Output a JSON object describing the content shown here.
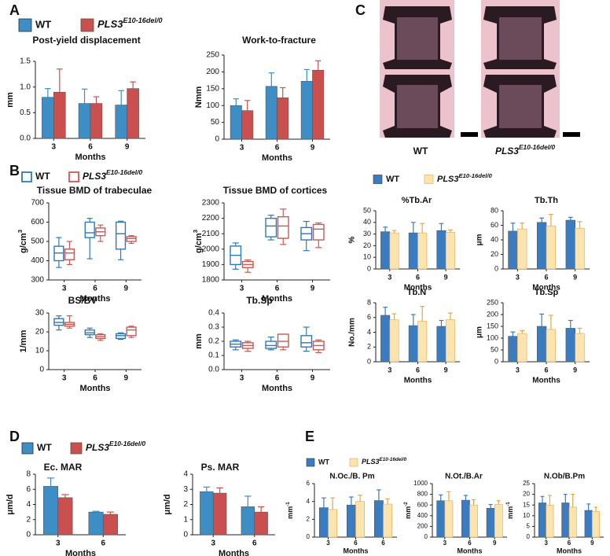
{
  "panel_labels": [
    "A",
    "B",
    "C",
    "D",
    "E"
  ],
  "image_labels": [
    "WT",
    {
      "base": "PLS3",
      "sup": "E10-16del/0"
    }
  ],
  "legends": [
    {
      "style": "filled",
      "entries": [
        {
          "name": "WT",
          "color": "#3d8ec4"
        },
        {
          "name": {
            "base": "PLS3",
            "sup": "E10-16del/0"
          },
          "color": "#c9504f"
        }
      ]
    },
    {
      "style": "outline",
      "entries": [
        {
          "name": "WT",
          "color": "#2e7ab8"
        },
        {
          "name": {
            "base": "PLS3",
            "sup": "E10-16del/0"
          },
          "color": "#c85a52"
        }
      ]
    },
    {
      "style": "filled",
      "entries": [
        {
          "name": "WT",
          "color": "#3b7cc0"
        },
        {
          "name": {
            "base": "PLS3",
            "sup": "E10-16del/0"
          },
          "color": "#fce4b0"
        }
      ]
    },
    {
      "style": "filled",
      "entries": [
        {
          "name": "WT",
          "color": "#3d8ec4"
        },
        {
          "name": {
            "base": "PLS3",
            "sup": "E10-16del/0"
          },
          "color": "#c9504f"
        }
      ]
    },
    {
      "style": "filled",
      "entries": [
        {
          "name": "WT",
          "color": "#3b7cc0"
        },
        {
          "name": {
            "base": "PLS3",
            "sup": "E10-16del/0"
          },
          "color": "#fce4b0"
        }
      ]
    }
  ],
  "chart_data": [
    {
      "type": "bar",
      "title": "Post-yield displacement",
      "ylabel": "mm",
      "xlabel": "Months",
      "categories": [
        3,
        6,
        9
      ],
      "series": [
        {
          "color": "#3d8ec4",
          "values": [
            0.8,
            0.68,
            0.65
          ],
          "errors": [
            0.17,
            0.28,
            0.28
          ]
        },
        {
          "color": "#c9504f",
          "values": [
            0.9,
            0.68,
            0.97
          ],
          "errors": [
            0.45,
            0.13,
            0.13
          ]
        }
      ],
      "ylim": [
        0,
        1.5
      ],
      "yticks": [
        {
          "value": 0,
          "label": "0.0"
        },
        {
          "value": 0.5,
          "label": "0.5"
        },
        {
          "value": 1,
          "label": "1.0"
        },
        1.5
      ]
    },
    {
      "type": "bar",
      "title": "Work-to-fracture",
      "ylabel": "Nmm",
      "xlabel": "Months",
      "categories": [
        3,
        6,
        9
      ],
      "series": [
        {
          "color": "#3d8ec4",
          "values": [
            100,
            157,
            172
          ],
          "errors": [
            20,
            40,
            35
          ]
        },
        {
          "color": "#c9504f",
          "values": [
            85,
            123,
            205
          ],
          "errors": [
            30,
            30,
            28
          ]
        }
      ],
      "ylim": [
        0,
        250
      ],
      "yticks": [
        0,
        50,
        100,
        150,
        200,
        250
      ]
    },
    {
      "type": "box",
      "title": "Tissue BMD of trabeculae",
      "ylabel": {
        "base": "g/cm",
        "sup": "3"
      },
      "xlabel": "Months",
      "categories": [
        3,
        6,
        9
      ],
      "series": [
        {
          "color": "#2e7ab8",
          "boxes": [
            {
              "min": 365,
              "q1": 400,
              "median": 440,
              "q3": 475,
              "max": 520
            },
            {
              "min": 410,
              "q1": 520,
              "median": 545,
              "q3": 600,
              "max": 620
            },
            {
              "min": 405,
              "q1": 460,
              "median": 540,
              "q3": 600,
              "max": 605
            }
          ]
        },
        {
          "color": "#c85a52",
          "boxes": [
            {
              "min": 380,
              "q1": 405,
              "median": 440,
              "q3": 460,
              "max": 500
            },
            {
              "min": 500,
              "q1": 530,
              "median": 550,
              "q3": 570,
              "max": 585
            },
            {
              "min": 490,
              "q1": 500,
              "median": 515,
              "q3": 525,
              "max": 530
            }
          ]
        }
      ],
      "ylim": [
        300,
        700
      ],
      "yticks": [
        300,
        400,
        500,
        600,
        700
      ]
    },
    {
      "type": "box",
      "title": "Tissue BMD of cortices",
      "ylabel": {
        "base": "g/cm",
        "sup": "3"
      },
      "xlabel": "Months",
      "categories": [
        3,
        6,
        9
      ],
      "series": [
        {
          "color": "#2e7ab8",
          "boxes": [
            {
              "min": 1870,
              "q1": 1900,
              "median": 1960,
              "q3": 2020,
              "max": 2040
            },
            {
              "min": 2060,
              "q1": 2080,
              "median": 2150,
              "q3": 2200,
              "max": 2220
            },
            {
              "min": 1990,
              "q1": 2060,
              "median": 2100,
              "q3": 2140,
              "max": 2180
            }
          ]
        },
        {
          "color": "#c85a52",
          "boxes": [
            {
              "min": 1850,
              "q1": 1880,
              "median": 1900,
              "q3": 1920,
              "max": 1930
            },
            {
              "min": 2030,
              "q1": 2070,
              "median": 2150,
              "q3": 2210,
              "max": 2260
            },
            {
              "min": 2010,
              "q1": 2060,
              "median": 2130,
              "q3": 2160,
              "max": 2170
            }
          ]
        }
      ],
      "ylim": [
        1800,
        2300
      ],
      "yticks": [
        1800,
        1900,
        2000,
        2100,
        2200,
        2300
      ]
    },
    {
      "type": "box",
      "title": "BS/BV",
      "ylabel": "1/mm",
      "xlabel": "Months",
      "categories": [
        3,
        6,
        9
      ],
      "series": [
        {
          "color": "#2e7ab8",
          "boxes": [
            {
              "min": 21,
              "q1": 23.5,
              "median": 25,
              "q3": 27,
              "max": 28.5
            },
            {
              "min": 17,
              "q1": 18.5,
              "median": 19.5,
              "q3": 21,
              "max": 22
            },
            {
              "min": 16,
              "q1": 16.5,
              "median": 18,
              "q3": 19,
              "max": 19.5
            }
          ]
        },
        {
          "color": "#c85a52",
          "boxes": [
            {
              "min": 22,
              "q1": 23,
              "median": 24,
              "q3": 25,
              "max": 28.5
            },
            {
              "min": 15.5,
              "q1": 16.5,
              "median": 17.5,
              "q3": 18.5,
              "max": 19
            },
            {
              "min": 17,
              "q1": 18,
              "median": 21,
              "q3": 22.5,
              "max": 23
            }
          ]
        }
      ],
      "ylim": [
        0,
        30
      ],
      "yticks": [
        0,
        10,
        20,
        30
      ]
    },
    {
      "type": "box",
      "title": "Tb.Sp",
      "ylabel": "mm",
      "xlabel": "Months",
      "categories": [
        3,
        6,
        9
      ],
      "series": [
        {
          "color": "#2e7ab8",
          "boxes": [
            {
              "min": 0.14,
              "q1": 0.16,
              "median": 0.18,
              "q3": 0.2,
              "max": 0.21
            },
            {
              "min": 0.14,
              "q1": 0.15,
              "median": 0.17,
              "q3": 0.2,
              "max": 0.23
            },
            {
              "min": 0.13,
              "q1": 0.16,
              "median": 0.19,
              "q3": 0.24,
              "max": 0.3
            }
          ]
        },
        {
          "color": "#c85a52",
          "boxes": [
            {
              "min": 0.13,
              "q1": 0.15,
              "median": 0.17,
              "q3": 0.19,
              "max": 0.2
            },
            {
              "min": 0.14,
              "q1": 0.16,
              "median": 0.2,
              "q3": 0.25,
              "max": 0.25
            },
            {
              "min": 0.12,
              "q1": 0.14,
              "median": 0.17,
              "q3": 0.2,
              "max": 0.21
            }
          ]
        }
      ],
      "ylim": [
        0,
        0.4
      ],
      "yticks": [
        {
          "value": 0,
          "label": "0.0"
        },
        0.1,
        0.2,
        0.3,
        0.4
      ]
    },
    {
      "type": "bar",
      "title": "%Tb.Ar",
      "ylabel": "%",
      "xlabel": "Months",
      "categories": [
        3,
        6,
        9
      ],
      "series": [
        {
          "color": "#3b7cc0",
          "values": [
            32,
            31,
            33
          ],
          "errors": [
            4,
            9,
            6
          ]
        },
        {
          "color": "#fce4b0",
          "edgecolor": "#e0a84e",
          "values": [
            31,
            31,
            31.5
          ],
          "errors": [
            2,
            8,
            2
          ]
        }
      ],
      "ylim": [
        0,
        50
      ],
      "yticks": [
        0,
        10,
        20,
        30,
        40,
        50
      ]
    },
    {
      "type": "bar",
      "title": "Tb.Th",
      "ylabel": "μm",
      "xlabel": "Months",
      "categories": [
        3,
        6,
        9
      ],
      "series": [
        {
          "color": "#3b7cc0",
          "values": [
            52,
            64,
            67
          ],
          "errors": [
            11,
            6,
            4
          ]
        },
        {
          "color": "#fce4b0",
          "edgecolor": "#e0a84e",
          "values": [
            55,
            59,
            56
          ],
          "errors": [
            8,
            16,
            9
          ]
        }
      ],
      "ylim": [
        0,
        80
      ],
      "yticks": [
        0,
        20,
        40,
        60,
        80
      ]
    },
    {
      "type": "bar",
      "title": "Tb.N",
      "ylabel": "No./mm",
      "xlabel": "Months",
      "categories": [
        3,
        6,
        9
      ],
      "series": [
        {
          "color": "#3b7cc0",
          "values": [
            6.3,
            4.9,
            4.8
          ],
          "errors": [
            1.1,
            1.5,
            0.8
          ]
        },
        {
          "color": "#fce4b0",
          "edgecolor": "#e0a84e",
          "values": [
            5.7,
            5.5,
            5.7
          ],
          "errors": [
            0.8,
            2,
            0.9
          ]
        }
      ],
      "ylim": [
        0,
        8
      ],
      "yticks": [
        0,
        2,
        4,
        6,
        8
      ]
    },
    {
      "type": "bar",
      "title": "Tb.Sp",
      "ylabel": "μm",
      "xlabel": "Months",
      "categories": [
        3,
        6,
        9
      ],
      "series": [
        {
          "color": "#3b7cc0",
          "values": [
            108,
            150,
            142
          ],
          "errors": [
            18,
            52,
            33
          ]
        },
        {
          "color": "#fce4b0",
          "edgecolor": "#e0a84e",
          "values": [
            120,
            137,
            120
          ],
          "errors": [
            12,
            60,
            22
          ]
        }
      ],
      "ylim": [
        0,
        250
      ],
      "yticks": [
        0,
        50,
        100,
        150,
        200,
        250
      ]
    },
    {
      "type": "bar",
      "title": "Ec. MAR",
      "ylabel": "μm/d",
      "xlabel": "Months",
      "categories": [
        3,
        6
      ],
      "series": [
        {
          "color": "#3d8ec4",
          "values": [
            6.4,
            3.0
          ],
          "errors": [
            1.1,
            0.1
          ]
        },
        {
          "color": "#c9504f",
          "values": [
            4.9,
            2.7
          ],
          "errors": [
            0.4,
            0.3
          ]
        }
      ],
      "ylim": [
        0,
        8
      ],
      "yticks": [
        0,
        2,
        4,
        6,
        8
      ]
    },
    {
      "type": "bar",
      "title": "Ps. MAR",
      "ylabel": "μm/d",
      "xlabel": "Months",
      "categories": [
        3,
        6
      ],
      "series": [
        {
          "color": "#3d8ec4",
          "values": [
            2.85,
            1.85
          ],
          "errors": [
            0.3,
            0.7
          ]
        },
        {
          "color": "#c9504f",
          "values": [
            2.75,
            1.5
          ],
          "errors": [
            0.35,
            0.35
          ]
        }
      ],
      "ylim": [
        0,
        4
      ],
      "yticks": [
        0,
        1,
        2,
        3,
        4
      ]
    },
    {
      "type": "bar",
      "title": "N.Oc./B. Pm",
      "ylabel": {
        "base": "mm",
        "sup": "-1"
      },
      "xlabel": "Months",
      "categories": [
        3,
        6,
        6
      ],
      "series": [
        {
          "color": "#3b7cc0",
          "values": [
            3.3,
            3.6,
            4.1
          ],
          "errors": [
            1.1,
            0.9,
            1.2
          ]
        },
        {
          "color": "#fce4b0",
          "edgecolor": "#e0a84e",
          "values": [
            3.1,
            4.0,
            3.7
          ],
          "errors": [
            1.3,
            0.7,
            0.6
          ]
        }
      ],
      "ylim": [
        0,
        6
      ],
      "yticks": [
        0,
        2,
        4,
        6
      ]
    },
    {
      "type": "bar",
      "title": "N.Ot./B.Ar",
      "ylabel": {
        "base": "mm",
        "sup": "-2"
      },
      "xlabel": "Months",
      "categories": [
        3,
        6,
        9
      ],
      "series": [
        {
          "color": "#3b7cc0",
          "values": [
            680,
            690,
            540
          ],
          "errors": [
            110,
            90,
            70
          ]
        },
        {
          "color": "#fce4b0",
          "edgecolor": "#e0a84e",
          "values": [
            680,
            600,
            610
          ],
          "errors": [
            170,
            100,
            70
          ]
        }
      ],
      "ylim": [
        0,
        1000
      ],
      "yticks": [
        0,
        200,
        400,
        600,
        800,
        1000
      ]
    },
    {
      "type": "bar",
      "title": "N.Ob/B.Pm",
      "ylabel": {
        "base": "mm",
        "sup": "-1"
      },
      "xlabel": "Months",
      "categories": [
        3,
        6,
        9
      ],
      "series": [
        {
          "color": "#3b7cc0",
          "values": [
            16,
            16,
            12.5
          ],
          "errors": [
            3,
            4,
            3
          ]
        },
        {
          "color": "#fce4b0",
          "edgecolor": "#e0a84e",
          "values": [
            15,
            14,
            12
          ],
          "errors": [
            4.5,
            6,
            2
          ]
        }
      ],
      "ylim": [
        0,
        25
      ],
      "yticks": [
        0,
        5,
        10,
        15,
        20,
        25
      ]
    }
  ]
}
